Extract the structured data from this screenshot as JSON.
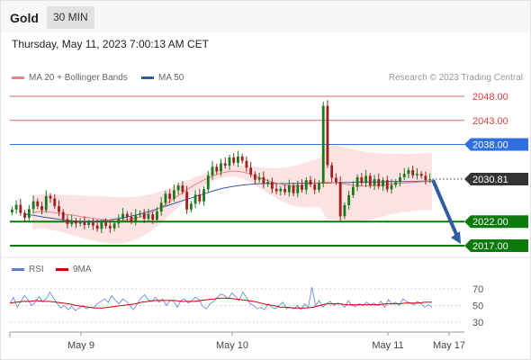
{
  "header": {
    "symbol": "Gold",
    "timeframe": "30 MIN"
  },
  "timestamp": "Thursday, May 11, 2023 7:00:13 AM CET",
  "legend": {
    "ma20": {
      "label": "MA 20 + Bollinger Bands",
      "color": "#f08080"
    },
    "ma50": {
      "label": "MA 50",
      "color": "#2f5d9f"
    }
  },
  "copyright": "Research © 2023 Trading Central",
  "rsi_legend": {
    "rsi": {
      "label": "RSI",
      "color": "#5b7fd4"
    },
    "ma9": {
      "label": "9MA",
      "color": "#d00000"
    }
  },
  "chart_data": [
    {
      "type": "line",
      "title": "",
      "ylim": [
        2012,
        2050
      ],
      "x_labels": [
        "May 9",
        "May 10",
        "May 11",
        "May 17"
      ],
      "levels": [
        {
          "value": 2048.0,
          "label": "2048.00",
          "kind": "resistance",
          "color": "#d94040"
        },
        {
          "value": 2043.0,
          "label": "2043.00",
          "kind": "resistance",
          "color": "#d94040"
        },
        {
          "value": 2038.0,
          "label": "2038.00",
          "kind": "pivot",
          "color": "#2f6fe0"
        },
        {
          "value": 2030.81,
          "label": "2030.81",
          "kind": "last",
          "color": "#333333"
        },
        {
          "value": 2022.0,
          "label": "2022.00",
          "kind": "support",
          "color": "#0a7a0a"
        },
        {
          "value": 2017.0,
          "label": "2017.00",
          "kind": "support",
          "color": "#0a7a0a"
        }
      ],
      "forecast_arrow": {
        "from": 2030.81,
        "to": 2017.0
      },
      "series": [
        {
          "name": "Price",
          "color": "#1a7a1a",
          "values": [
            2024.5,
            2025.5,
            2023.8,
            2022.8,
            2024.6,
            2026.2,
            2025.2,
            2024.4,
            2027.3,
            2026.8,
            2025.2,
            2024.0,
            2022.5,
            2021.5,
            2022.2,
            2021.6,
            2021.9,
            2021.3,
            2021.8,
            2021.2,
            2020.5,
            2021.8,
            2021.1,
            2020.6,
            2021.6,
            2022.6,
            2023.6,
            2023.0,
            2022.1,
            2023.4,
            2023.7,
            2022.6,
            2023.5,
            2022.4,
            2024.1,
            2025.9,
            2027.8,
            2026.7,
            2028.5,
            2029.5,
            2028.2,
            2024.5,
            2025.7,
            2027.6,
            2026.2,
            2028.7,
            2031.6,
            2033.4,
            2032.4,
            2034.1,
            2033.6,
            2035.3,
            2034.2,
            2035.5,
            2034.6,
            2033.2,
            2031.8,
            2030.7,
            2031.2,
            2029.8,
            2030.2,
            2028.8,
            2028.3,
            2028.8,
            2028.1,
            2029.5,
            2027.9,
            2029.6,
            2028.6,
            2030.6,
            2029.7,
            2028.6,
            2030.0,
            2046.0,
            2033.7,
            2031.1,
            2030.2,
            2023.1,
            2025.4,
            2027.5,
            2029.2,
            2031.2,
            2030.0,
            2031.5,
            2029.5,
            2030.8,
            2029.3,
            2030.6,
            2028.7,
            2029.6,
            2030.2,
            2031.2,
            2031.9,
            2032.7,
            2031.6,
            2031.9,
            2031.5,
            2030.6,
            2030.8
          ]
        },
        {
          "name": "MA 20",
          "color": "#f08080",
          "values": [
            2023.8,
            2024.1,
            2024.1,
            2023.9,
            2023.7,
            2023.5,
            2023.3,
            2023.0,
            2022.8,
            2022.6,
            2022.5,
            2022.3,
            2022.2,
            2022.3,
            2022.5,
            2022.8,
            2023.3,
            2023.9,
            2024.7,
            2025.6,
            2026.6,
            2027.6,
            2028.6,
            2029.5,
            2030.3,
            2031.0,
            2031.6,
            2032.1,
            2032.4,
            2032.5,
            2032.3,
            2031.9,
            2031.3,
            2030.8,
            2030.3,
            2029.9,
            2029.6,
            2029.4,
            2029.4,
            2029.6,
            2029.9,
            2030.1,
            2030.2,
            2030.1,
            2029.9,
            2029.7,
            2029.5,
            2029.4,
            2029.4,
            2029.5,
            2029.6,
            2029.8,
            2029.9,
            2030.0,
            2030.1,
            2030.2,
            2030.3,
            2030.3
          ]
        },
        {
          "name": "MA 50",
          "color": "#2f5d9f",
          "values": [
            2023.6,
            2023.3,
            2022.9,
            2022.6,
            2022.3,
            2022.1,
            2022.0,
            2022.1,
            2022.3,
            2022.6,
            2023.0,
            2023.5,
            2024.1,
            2024.8,
            2025.5,
            2026.2,
            2026.9,
            2027.6,
            2028.3,
            2028.9,
            2029.3,
            2029.6,
            2029.8,
            2029.9,
            2029.9,
            2029.9,
            2029.9,
            2030.0,
            2030.0,
            2030.0,
            2030.1,
            2030.1,
            2030.2,
            2030.2,
            2030.2,
            2030.3,
            2030.3,
            2030.3,
            2030.4,
            2030.4
          ]
        }
      ]
    },
    {
      "type": "line",
      "title": "",
      "ylim": [
        20,
        80
      ],
      "yticks": [
        30,
        50,
        70
      ],
      "series": [
        {
          "name": "RSI",
          "color": "#5b7fd4",
          "values": [
            52,
            60,
            48,
            55,
            62,
            57,
            50,
            54,
            61,
            55,
            58,
            66,
            59,
            52,
            47,
            50,
            45,
            49,
            44,
            47,
            50,
            46,
            48,
            47,
            52,
            55,
            58,
            54,
            62,
            56,
            52,
            58,
            55,
            50,
            45,
            52,
            59,
            63,
            57,
            55,
            60,
            54,
            58,
            50,
            56,
            55,
            48,
            56,
            58,
            53,
            56,
            60,
            57,
            49,
            46,
            52,
            55,
            60,
            64,
            62,
            58,
            65,
            61,
            56,
            66,
            60,
            52,
            50,
            46,
            48,
            45,
            52,
            48,
            46,
            50,
            54,
            46,
            48,
            46,
            50,
            45,
            52,
            48,
            72,
            50,
            56,
            48,
            52,
            55,
            50,
            53,
            52,
            48,
            56,
            50,
            49,
            52,
            50,
            54,
            51,
            53,
            50,
            55,
            48,
            57,
            52,
            54,
            50,
            58,
            55,
            53,
            51,
            55,
            52,
            48,
            51,
            48
          ]
        },
        {
          "name": "9MA",
          "color": "#d00000",
          "values": [
            53,
            54,
            55,
            55,
            56,
            55,
            55,
            54,
            53,
            52,
            50,
            49,
            48,
            47,
            47,
            48,
            49,
            50,
            51,
            52,
            54,
            55,
            56,
            56,
            56,
            56,
            55,
            55,
            55,
            56,
            57,
            58,
            59,
            59,
            58,
            57,
            56,
            55,
            53,
            51,
            50,
            48,
            48,
            47,
            47,
            47,
            48,
            50,
            52,
            52,
            52,
            51,
            51,
            51,
            51,
            51,
            51,
            52,
            52,
            52,
            53,
            53,
            53,
            54,
            54
          ]
        }
      ]
    }
  ]
}
